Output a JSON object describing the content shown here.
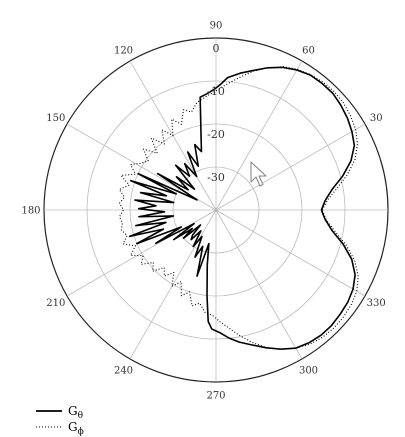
{
  "chart_data": {
    "type": "polar-line",
    "angle_unit": "degrees",
    "angle_ticks": [
      0,
      30,
      60,
      90,
      120,
      150,
      180,
      210,
      240,
      270,
      300,
      330
    ],
    "angle_tick_labels": [
      "",
      "30",
      "60",
      "90",
      "120",
      "150",
      "180",
      "210",
      "240",
      "270",
      "300",
      "330"
    ],
    "radial_ticks": [
      0,
      -10,
      -20,
      -30
    ],
    "radial_tick_labels": [
      "0",
      "-10",
      "-20",
      "-30"
    ],
    "radial_range": [
      -40,
      0
    ],
    "grid": true,
    "legend_position": "bottom-left",
    "series": [
      {
        "name": "G",
        "name_sub": "θ",
        "style": "solid",
        "color": "#000000",
        "points": [
          [
            0,
            -15.5
          ],
          [
            5,
            -14.5
          ],
          [
            10,
            -12.6
          ],
          [
            15,
            -9.5
          ],
          [
            20,
            -6.6
          ],
          [
            25,
            -4.5
          ],
          [
            30,
            -3.5
          ],
          [
            35,
            -2.7
          ],
          [
            40,
            -2.1
          ],
          [
            45,
            -1.6
          ],
          [
            50,
            -1.6
          ],
          [
            55,
            -1.7
          ],
          [
            60,
            -2.4
          ],
          [
            65,
            -3.4
          ],
          [
            70,
            -4.8
          ],
          [
            75,
            -6.4
          ],
          [
            80,
            -7.7
          ],
          [
            85,
            -9.1
          ],
          [
            88,
            -10.8
          ],
          [
            91,
            -12
          ],
          [
            95,
            -13
          ],
          [
            98,
            -13.5
          ],
          [
            104,
            -26
          ],
          [
            108,
            -24
          ],
          [
            112,
            -29
          ],
          [
            116,
            -25
          ],
          [
            120,
            -31
          ],
          [
            124,
            -27
          ],
          [
            128,
            -30
          ],
          [
            132,
            -26
          ],
          [
            136,
            -33
          ],
          [
            140,
            -28
          ],
          [
            144,
            -32
          ],
          [
            148,
            -24
          ],
          [
            152,
            -35
          ],
          [
            155,
            -20
          ],
          [
            158,
            -30
          ],
          [
            161,
            -19
          ],
          [
            164,
            -28
          ],
          [
            167,
            -22
          ],
          [
            170,
            -30
          ],
          [
            173,
            -21
          ],
          [
            176,
            -26
          ],
          [
            179,
            -22
          ],
          [
            182,
            -28
          ],
          [
            185,
            -22
          ],
          [
            188,
            -30
          ],
          [
            191,
            -21
          ],
          [
            194,
            -28
          ],
          [
            197,
            -19
          ],
          [
            200,
            -27
          ],
          [
            203,
            -20
          ],
          [
            206,
            -31
          ],
          [
            209,
            -24
          ],
          [
            212,
            -34
          ],
          [
            215,
            -28
          ],
          [
            218,
            -33
          ],
          [
            221,
            -30
          ],
          [
            224,
            -35
          ],
          [
            227,
            -32
          ],
          [
            230,
            -31
          ],
          [
            234,
            -34
          ],
          [
            238,
            -30
          ],
          [
            242,
            -33
          ],
          [
            246,
            -28
          ],
          [
            250,
            -31
          ],
          [
            254,
            -24
          ],
          [
            258,
            -32
          ],
          [
            261,
            -27
          ],
          [
            264,
            -20
          ],
          [
            266,
            -14
          ],
          [
            268,
            -12.3
          ],
          [
            272,
            -11.4
          ],
          [
            276,
            -10.0
          ],
          [
            280,
            -8.8
          ],
          [
            285,
            -7.5
          ],
          [
            290,
            -5.9
          ],
          [
            295,
            -4.3
          ],
          [
            300,
            -2.9
          ],
          [
            305,
            -2.3
          ],
          [
            310,
            -2.0
          ],
          [
            315,
            -2.0
          ],
          [
            320,
            -2.3
          ],
          [
            325,
            -2.6
          ],
          [
            330,
            -3.2
          ],
          [
            335,
            -4.3
          ],
          [
            340,
            -6.4
          ],
          [
            345,
            -9.4
          ],
          [
            350,
            -12.6
          ],
          [
            355,
            -14.5
          ],
          [
            360,
            -15.5
          ]
        ]
      },
      {
        "name": "G",
        "name_sub": "ϕ",
        "style": "dotted",
        "color": "#000000",
        "points": [
          [
            0,
            -15.3
          ],
          [
            5,
            -14
          ],
          [
            10,
            -11.5
          ],
          [
            15,
            -8.4
          ],
          [
            20,
            -5.6
          ],
          [
            25,
            -3.7
          ],
          [
            30,
            -2.5
          ],
          [
            35,
            -1.8
          ],
          [
            40,
            -1.3
          ],
          [
            45,
            -1.1
          ],
          [
            50,
            -1.2
          ],
          [
            55,
            -1.6
          ],
          [
            60,
            -2.2
          ],
          [
            65,
            -3.2
          ],
          [
            70,
            -4.8
          ],
          [
            75,
            -6.6
          ],
          [
            80,
            -8.7
          ],
          [
            85,
            -10.6
          ],
          [
            90,
            -12.3
          ],
          [
            95,
            -13.5
          ],
          [
            100,
            -14.6
          ],
          [
            104,
            -16.5
          ],
          [
            108,
            -15.5
          ],
          [
            112,
            -18.5
          ],
          [
            116,
            -16.5
          ],
          [
            120,
            -20
          ],
          [
            124,
            -17.5
          ],
          [
            128,
            -20.5
          ],
          [
            132,
            -17.5
          ],
          [
            136,
            -21
          ],
          [
            140,
            -18
          ],
          [
            144,
            -20.5
          ],
          [
            148,
            -19.5
          ],
          [
            152,
            -17.5
          ],
          [
            156,
            -19.5
          ],
          [
            160,
            -16.5
          ],
          [
            164,
            -19
          ],
          [
            168,
            -17
          ],
          [
            172,
            -18.5
          ],
          [
            176,
            -17.5
          ],
          [
            180,
            -18.5
          ],
          [
            184,
            -17.5
          ],
          [
            188,
            -18
          ],
          [
            192,
            -17.5
          ],
          [
            196,
            -18.5
          ],
          [
            200,
            -17
          ],
          [
            204,
            -19.5
          ],
          [
            208,
            -17.5
          ],
          [
            212,
            -20
          ],
          [
            216,
            -18.5
          ],
          [
            220,
            -21
          ],
          [
            224,
            -19.5
          ],
          [
            228,
            -22
          ],
          [
            232,
            -20.5
          ],
          [
            236,
            -22.5
          ],
          [
            240,
            -19.5
          ],
          [
            244,
            -21.5
          ],
          [
            248,
            -18.5
          ],
          [
            252,
            -20
          ],
          [
            256,
            -17
          ],
          [
            260,
            -18
          ],
          [
            264,
            -16
          ],
          [
            268,
            -15.5
          ],
          [
            272,
            -14
          ],
          [
            276,
            -12.5
          ],
          [
            280,
            -10.6
          ],
          [
            285,
            -8.2
          ],
          [
            290,
            -6
          ],
          [
            295,
            -4.2
          ],
          [
            300,
            -2.9
          ],
          [
            305,
            -1.9
          ],
          [
            310,
            -1.4
          ],
          [
            315,
            -1.2
          ],
          [
            320,
            -1.3
          ],
          [
            325,
            -1.6
          ],
          [
            330,
            -2.2
          ],
          [
            335,
            -3.5
          ],
          [
            340,
            -5.7
          ],
          [
            345,
            -8.7
          ],
          [
            350,
            -12
          ],
          [
            355,
            -14.3
          ],
          [
            360,
            -15.3
          ]
        ]
      }
    ]
  },
  "pointer": {
    "icon": "mouse-cursor-icon"
  }
}
